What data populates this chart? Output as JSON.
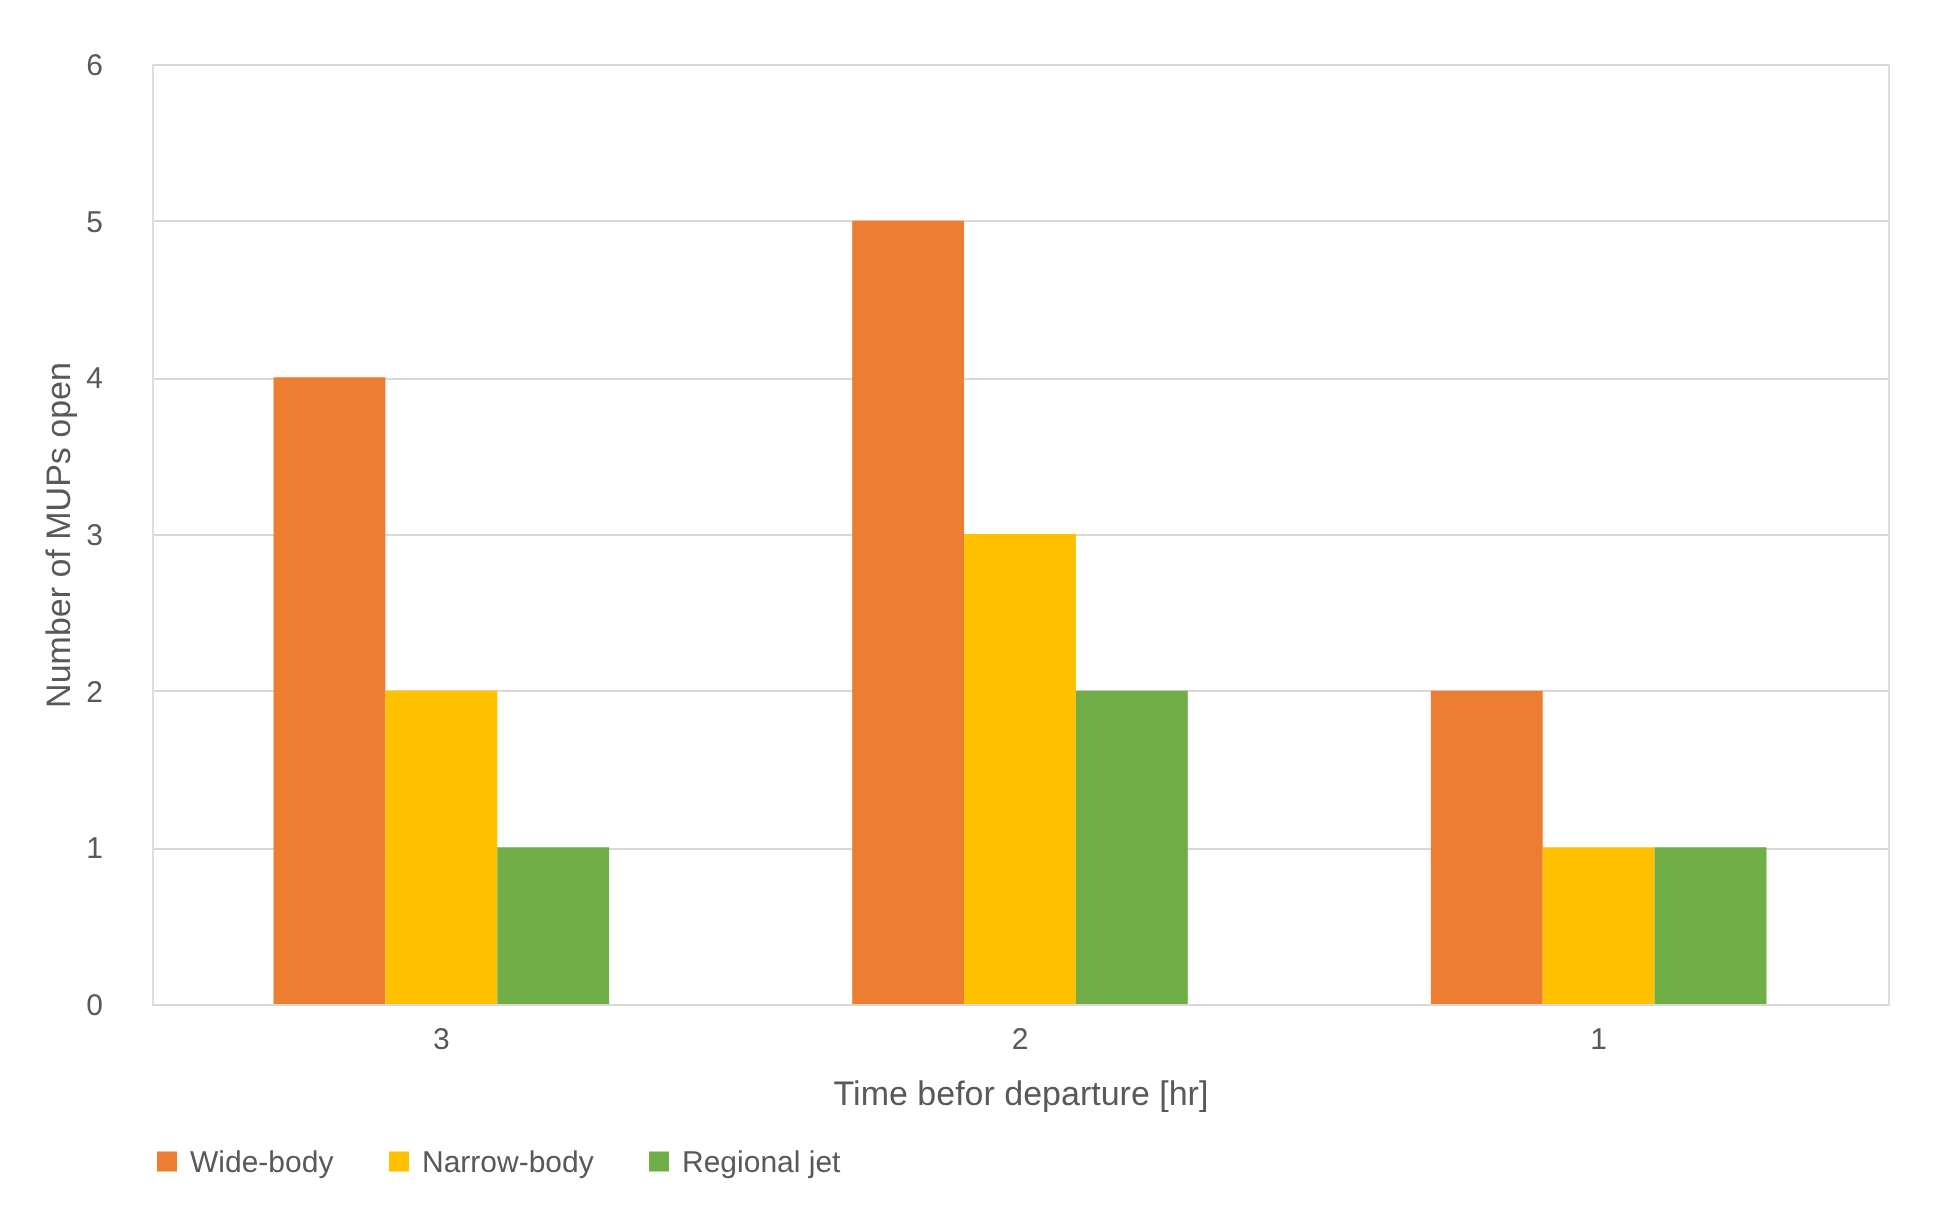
{
  "chart_data": {
    "type": "bar",
    "xlabel": "Time befor departure [hr]",
    "ylabel": "Number of MUPs open",
    "categories": [
      "3",
      "2",
      "1"
    ],
    "series": [
      {
        "name": "Wide-body",
        "color": "#ed7d31",
        "values": [
          4,
          5,
          2
        ]
      },
      {
        "name": "Narrow-body",
        "color": "#ffc000",
        "values": [
          2,
          3,
          1
        ]
      },
      {
        "name": "Regional jet",
        "color": "#70ad47",
        "values": [
          1,
          2,
          1
        ]
      }
    ],
    "ylim": [
      0,
      6
    ],
    "yticks": [
      0,
      1,
      2,
      3,
      4,
      5,
      6
    ],
    "grid": "y",
    "legend": "bottom"
  }
}
